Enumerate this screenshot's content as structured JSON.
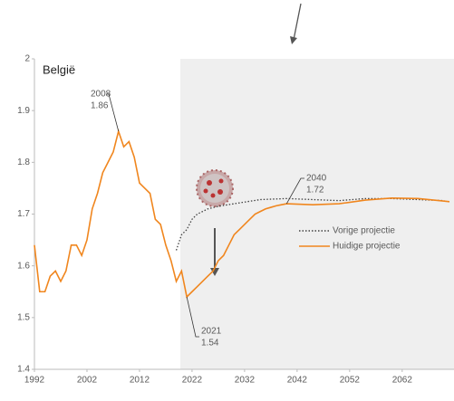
{
  "chart_data": {
    "type": "line",
    "title": "België",
    "xlim": [
      1992,
      2071
    ],
    "ylim": [
      1.4,
      2
    ],
    "xticks": [
      1992,
      2002,
      2012,
      2022,
      2032,
      2042,
      2052,
      2062
    ],
    "yticks": [
      1.4,
      1.5,
      1.6,
      1.7,
      1.8,
      1.9,
      2
    ],
    "legend": "inside-right",
    "series": [
      {
        "name": "Vorige projectie",
        "color": "#404040",
        "dash": "dotted",
        "x": [
          2019,
          2020,
          2021,
          2022,
          2023,
          2024,
          2025,
          2027,
          2030,
          2035,
          2040,
          2045,
          2050,
          2055,
          2060,
          2065,
          2070
        ],
        "values": [
          1.63,
          1.66,
          1.67,
          1.69,
          1.7,
          1.705,
          1.71,
          1.715,
          1.72,
          1.728,
          1.73,
          1.728,
          1.726,
          1.73,
          1.73,
          1.728,
          1.726
        ]
      },
      {
        "name": "Huidige projectie",
        "color": "#f0861e",
        "dash": "solid",
        "x": [
          1992,
          1993,
          1994,
          1995,
          1996,
          1997,
          1998,
          1999,
          2000,
          2001,
          2002,
          2003,
          2004,
          2005,
          2006,
          2007,
          2008,
          2009,
          2010,
          2011,
          2012,
          2013,
          2014,
          2015,
          2016,
          2017,
          2018,
          2019,
          2020,
          2021,
          2022,
          2023,
          2024,
          2025,
          2026,
          2027,
          2028,
          2029,
          2030,
          2031,
          2032,
          2033,
          2034,
          2035,
          2036,
          2037,
          2038,
          2039,
          2040,
          2045,
          2050,
          2055,
          2060,
          2065,
          2070,
          2071
        ],
        "values": [
          1.64,
          1.55,
          1.55,
          1.58,
          1.59,
          1.57,
          1.59,
          1.64,
          1.64,
          1.62,
          1.65,
          1.71,
          1.74,
          1.78,
          1.8,
          1.82,
          1.86,
          1.83,
          1.84,
          1.81,
          1.76,
          1.75,
          1.74,
          1.69,
          1.68,
          1.64,
          1.61,
          1.57,
          1.59,
          1.54,
          1.55,
          1.56,
          1.57,
          1.58,
          1.59,
          1.61,
          1.62,
          1.64,
          1.66,
          1.67,
          1.68,
          1.69,
          1.7,
          1.705,
          1.71,
          1.713,
          1.716,
          1.718,
          1.72,
          1.718,
          1.72,
          1.727,
          1.731,
          1.73,
          1.725,
          1.724
        ]
      }
    ],
    "annotations": [
      {
        "year": 2008,
        "value": 1.86
      },
      {
        "year": 2040,
        "value": 1.72
      },
      {
        "year": 2021,
        "value": 1.54
      }
    ]
  }
}
